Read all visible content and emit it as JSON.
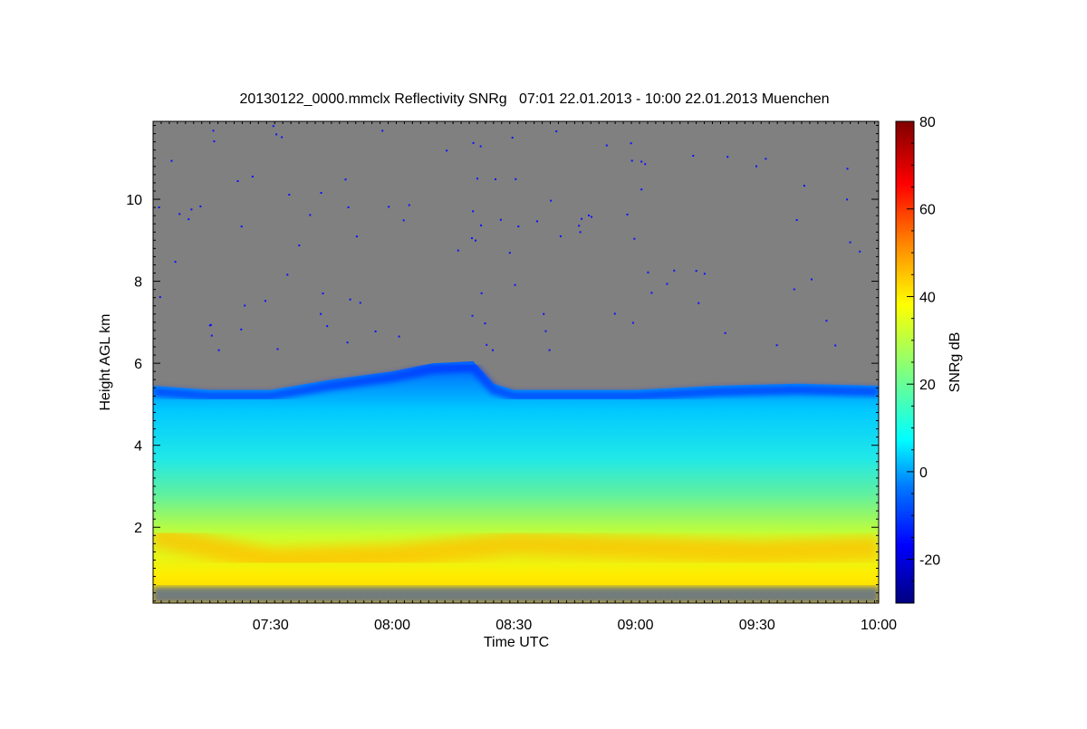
{
  "chart_data": {
    "type": "heatmap",
    "title": "20130122_0000.mmclx Reflectivity SNRg   07:01 22.01.2013 - 10:00 22.01.2013 Muenchen",
    "xlabel": "Time UTC",
    "ylabel": "Height AGL km",
    "colorbar_label": "SNRg dB",
    "x_range": [
      "07:01",
      "10:00"
    ],
    "x_ticks": [
      "07:30",
      "08:00",
      "08:30",
      "09:00",
      "09:30",
      "10:00"
    ],
    "y_range": [
      0.15,
      11.9
    ],
    "y_ticks": [
      2,
      4,
      6,
      8,
      10
    ],
    "color_range": [
      -30,
      80
    ],
    "colorbar_ticks": [
      -20,
      0,
      20,
      40,
      60,
      80
    ],
    "colormap": "jet",
    "no_signal_color": "#808080",
    "echo_top_km": [
      {
        "time": "07:01",
        "top": 5.45
      },
      {
        "time": "07:15",
        "top": 5.35
      },
      {
        "time": "07:30",
        "top": 5.35
      },
      {
        "time": "07:45",
        "top": 5.6
      },
      {
        "time": "08:00",
        "top": 5.8
      },
      {
        "time": "08:10",
        "top": 6.0
      },
      {
        "time": "08:20",
        "top": 6.05
      },
      {
        "time": "08:25",
        "top": 5.5
      },
      {
        "time": "08:30",
        "top": 5.35
      },
      {
        "time": "09:00",
        "top": 5.35
      },
      {
        "time": "09:20",
        "top": 5.45
      },
      {
        "time": "09:40",
        "top": 5.5
      },
      {
        "time": "10:00",
        "top": 5.45
      }
    ],
    "max_layer_km": [
      {
        "time": "07:01",
        "height": 1.8
      },
      {
        "time": "07:30",
        "height": 1.2
      },
      {
        "time": "08:00",
        "height": 1.3
      },
      {
        "time": "08:30",
        "height": 1.6
      },
      {
        "time": "09:00",
        "height": 1.5
      },
      {
        "time": "09:30",
        "height": 1.4
      },
      {
        "time": "10:00",
        "height": 1.5
      }
    ]
  }
}
